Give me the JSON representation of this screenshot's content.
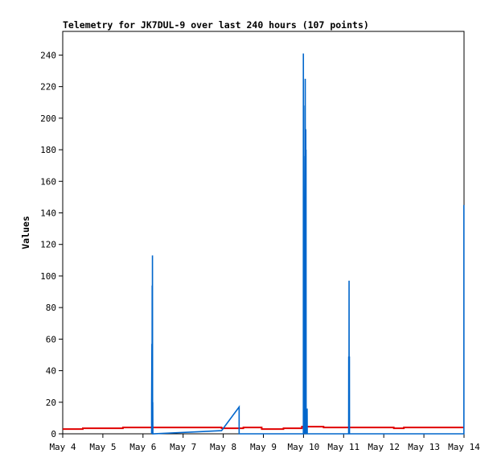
{
  "chart_data": {
    "type": "line",
    "title": "Telemetry for JK7DUL-9 over last 240 hours (107 points)",
    "xlabel": "",
    "ylabel": "Values",
    "ylim": [
      0,
      255
    ],
    "xlim": [
      "May 4",
      "May 14"
    ],
    "x_ticks": [
      "May 4",
      "May 5",
      "May 6",
      "May 7",
      "May 8",
      "May 9",
      "May 10",
      "May 11",
      "May 12",
      "May 13",
      "May 14"
    ],
    "y_ticks": [
      0,
      20,
      40,
      60,
      80,
      100,
      120,
      140,
      160,
      180,
      200,
      220,
      240
    ],
    "grid": false,
    "legend": "none",
    "series": [
      {
        "color": "#e00000",
        "x": [
          "May 4 00:00",
          "May 4 12:00",
          "May 4 12:01",
          "May 5 12:00",
          "May 5 12:01",
          "May 7 23:00",
          "May 7 23:01",
          "May 8 12:00",
          "May 8 12:01",
          "May 8 23:00",
          "May 8 23:01",
          "May 9 12:00",
          "May 9 12:01",
          "May 9 23:00",
          "May 9 23:01",
          "May 10 12:00",
          "May 10 12:01",
          "May 12 06:00",
          "May 12 06:01",
          "May 12 12:00",
          "May 12 12:01",
          "May 13 23:59"
        ],
        "values": [
          3,
          3,
          3.5,
          3.5,
          4,
          4,
          3.5,
          3.5,
          4,
          4,
          3,
          3,
          3.5,
          3.5,
          4.5,
          4.5,
          4,
          4,
          3.5,
          3.5,
          4,
          4
        ]
      },
      {
        "color": "#0066cc",
        "x": [
          "May 6 05:10",
          "May 6 05:10",
          "May 6 05:20",
          "May 6 05:25",
          "May 6 05:30",
          "May 6 05:35",
          "May 6 05:40",
          "May 6 05:45",
          "May 6 05:50",
          "May 6 05:55",
          "May 7 23:00",
          "May 8 09:30",
          "May 8 09:30",
          "May 9 23:55",
          "May 9 23:55",
          "May 10 00:02",
          "May 10 00:05",
          "May 10 00:08",
          "May 10 00:10",
          "May 10 00:15",
          "May 10 00:18",
          "May 10 00:22",
          "May 10 00:26",
          "May 10 00:30",
          "May 10 00:34",
          "May 10 00:38",
          "May 10 00:42",
          "May 10 00:46",
          "May 10 00:50",
          "May 10 00:54",
          "May 10 00:58",
          "May 10 01:02",
          "May 10 01:06",
          "May 10 01:10",
          "May 10 01:14",
          "May 10 01:18",
          "May 10 01:22",
          "May 10 01:26",
          "May 10 01:30",
          "May 10 01:34",
          "May 10 01:38",
          "May 10 01:42",
          "May 10 01:46",
          "May 10 01:50",
          "May 10 01:54",
          "May 10 01:58",
          "May 10 02:02",
          "May 10 02:06",
          "May 10 02:10",
          "May 10 02:14",
          "May 10 02:18",
          "May 11 03:00",
          "May 11 03:03",
          "May 11 03:06",
          "May 11 03:09",
          "May 11 03:12",
          "May 11 03:15",
          "May 11 03:18",
          "May 11 03:21",
          "May 11 03:24",
          "May 11 03:27",
          "May 11 03:30",
          "May 11 03:33",
          "May 13 23:55",
          "May 13 23:55"
        ],
        "values": [
          0,
          20,
          57,
          0,
          94,
          20,
          113,
          0,
          20,
          0,
          2,
          17,
          0,
          0,
          241,
          0,
          208,
          80,
          176,
          145,
          0,
          112,
          50,
          0,
          128,
          80,
          0,
          16,
          0,
          0,
          0,
          225,
          16,
          0,
          16,
          0,
          193,
          0,
          180,
          0,
          16,
          0,
          16,
          0,
          16,
          0,
          16,
          0,
          16,
          0,
          0,
          0,
          49,
          0,
          49,
          0,
          97,
          0,
          49,
          0,
          49,
          0,
          0,
          0,
          145
        ]
      }
    ]
  }
}
